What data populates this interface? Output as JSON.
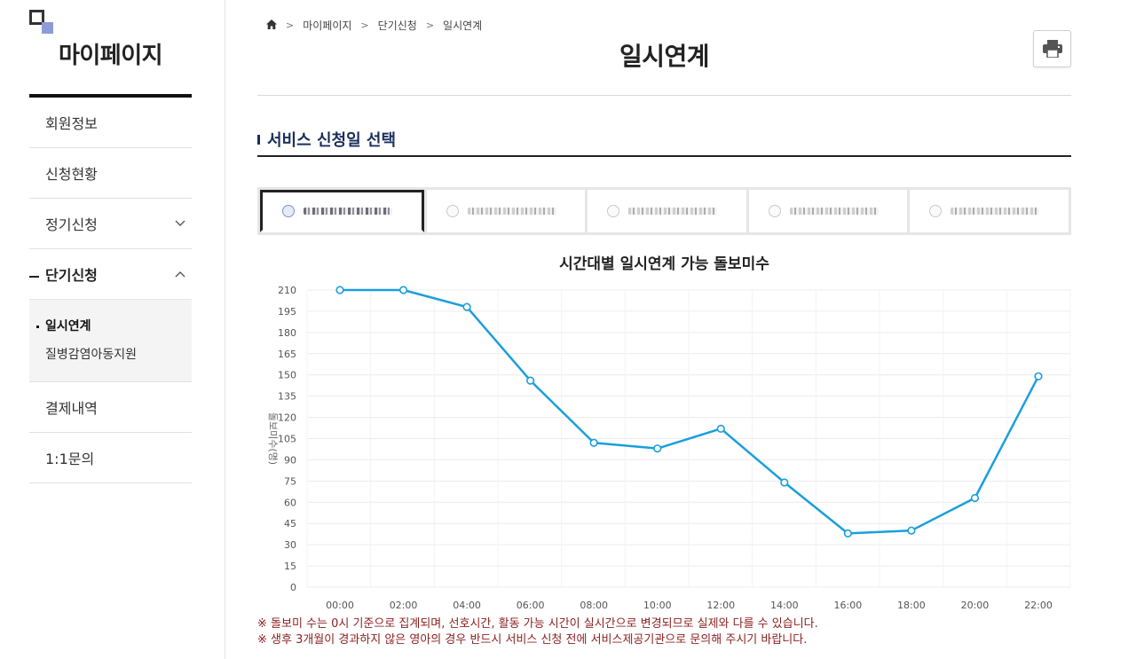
{
  "sidebar": {
    "title": "마이페이지",
    "items": [
      {
        "label": "회원정보"
      },
      {
        "label": "신청현황"
      },
      {
        "label": "정기신청"
      },
      {
        "label": "단기신청"
      },
      {
        "label": "결제내역"
      },
      {
        "label": "1:1문의"
      }
    ],
    "submenu": [
      {
        "label": "일시연계"
      },
      {
        "label": "질병감염아동지원"
      }
    ]
  },
  "breadcrumb": {
    "items": [
      "마이페이지",
      "단기신청",
      "일시연계"
    ]
  },
  "page": {
    "title": "일시연계"
  },
  "section": {
    "title": "서비스 신청일 선택"
  },
  "tabs": {
    "count": 5,
    "active_index": 0
  },
  "notes": [
    "※ 돌보미 수는 0시 기준으로 집계되며, 선호시간, 활동 가능 시간이 실시간으로 변경되므로 실제와 다를 수 있습니다.",
    "※ 생후 3개월이 경과하지 않은 영아의 경우 반드시 서비스 신청 전에 서비스제공기관으로 문의해 주시기 바랍니다."
  ],
  "colors": {
    "line": "#1a9fdc",
    "note": "#8b1e1e",
    "section": "#1a2f5c"
  },
  "icons": {
    "home": "home-icon",
    "print": "print-icon"
  },
  "chart_data": {
    "type": "line",
    "title": "시간대별 일시연계 가능 돌보미수",
    "ylabel": "돌보미수(명)",
    "xlabel": "",
    "categories": [
      "00:00",
      "02:00",
      "04:00",
      "06:00",
      "08:00",
      "10:00",
      "12:00",
      "14:00",
      "16:00",
      "18:00",
      "20:00",
      "22:00"
    ],
    "yticks": [
      0,
      15,
      30,
      45,
      60,
      75,
      90,
      105,
      120,
      135,
      150,
      165,
      180,
      195,
      210
    ],
    "ylim": [
      0,
      210
    ],
    "series": [
      {
        "values": [
          210,
          210,
          198,
          146,
          102,
          98,
          112,
          74,
          38,
          40,
          63,
          149
        ]
      }
    ],
    "grid": true,
    "legend": "none"
  }
}
